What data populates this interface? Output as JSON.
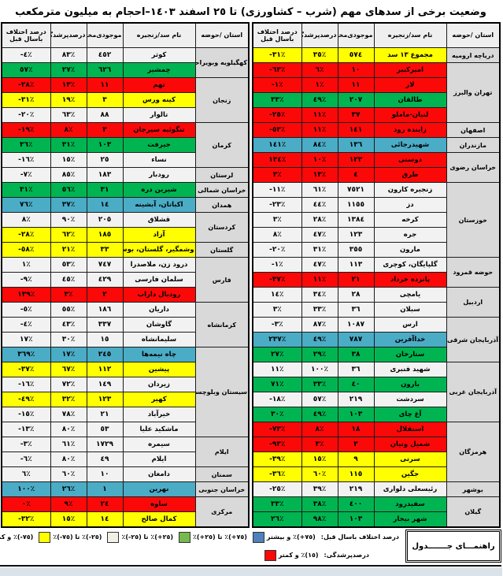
{
  "title": "وضعیت برخی از سدهای مهم (شرب – کشاورزی) تا ٢٥ اسفند ١٤٠٣–احجام به میلیون مترمکعب",
  "columns": [
    "استان /حوضه",
    "نام سد/زنجیره",
    "موجودی‌مخزن",
    "درصدپرشدگی",
    "درصد اختلاف باسال قبل"
  ],
  "right_table": {
    "groups": [
      {
        "province": "دریاچه ارومیه",
        "rows": [
          {
            "name": "مجموع ١٣ سد",
            "volume": "٥٧٤",
            "fill": "٣٥٪",
            "diff": "-٣١٪",
            "color": "yellow"
          }
        ]
      },
      {
        "province": "تهران والبرز",
        "rows": [
          {
            "name": "امیرکبیر",
            "volume": "١٠",
            "fill": "٦٪",
            "diff": "-٦٣٪",
            "color": "red"
          },
          {
            "name": "لار",
            "volume": "١١",
            "fill": "١٪",
            "diff": "-١٪",
            "color": "red"
          },
          {
            "name": "طالقان",
            "volume": "٢٠٧",
            "fill": "٤٩٪",
            "diff": "٣٣٪",
            "color": "green"
          },
          {
            "name": "لتیان-ماملو",
            "volume": "٣٧",
            "fill": "١١٪",
            "diff": "-٢٥٪",
            "color": "red"
          }
        ]
      },
      {
        "province": "اصفهان",
        "rows": [
          {
            "name": "زاینده رود",
            "volume": "١٤١",
            "fill": "١١٪",
            "diff": "-٥٣٪",
            "color": "red"
          }
        ]
      },
      {
        "province": "مازندران",
        "rows": [
          {
            "name": "شهیدرجائی",
            "volume": "١٣٦",
            "fill": "٨٤٪",
            "diff": "١٤١٪",
            "color": "blue"
          }
        ]
      },
      {
        "province": "خراسان رضوی",
        "rows": [
          {
            "name": "دوستی",
            "volume": "١٢٣",
            "fill": "١٠٪",
            "diff": "١٣٤٪",
            "color": "red"
          },
          {
            "name": "طرق",
            "volume": "٤",
            "fill": "١٣٪",
            "diff": "٣٪",
            "color": "red"
          }
        ]
      },
      {
        "province": "خوزستان",
        "rows": [
          {
            "name": "زنجیره کارون",
            "volume": "٧٥٢١",
            "fill": "٦١٪",
            "diff": "-١١٪",
            "color": "white"
          },
          {
            "name": "دز",
            "volume": "١١٥٥",
            "fill": "٤٤٪",
            "diff": "-٢٣٪",
            "color": "white"
          },
          {
            "name": "کرخه",
            "volume": "١٣٨٤",
            "fill": "٢٨٪",
            "diff": "٣٪",
            "color": "white"
          },
          {
            "name": "جره",
            "volume": "١٢٣",
            "fill": "٤٧٪",
            "diff": "٨٪",
            "color": "white"
          },
          {
            "name": "مارون",
            "volume": "٣٥٥",
            "fill": "٣١٪",
            "diff": "-٢٠٪",
            "color": "white"
          }
        ]
      },
      {
        "province": "حوضه قمرود",
        "rows": [
          {
            "name": "گلپایگان، کوچری",
            "volume": "١١٣",
            "fill": "٤٧٪",
            "diff": "-١٪",
            "color": "white"
          },
          {
            "name": "پانزده خرداد",
            "volume": "٢١",
            "fill": "١١٪",
            "diff": "-٣٧٪",
            "color": "red"
          }
        ]
      },
      {
        "province": "اردبیل",
        "rows": [
          {
            "name": "یامچی",
            "volume": "٢٨",
            "fill": "٣٤٪",
            "diff": "١٤٪",
            "color": "white"
          },
          {
            "name": "سبلان",
            "volume": "٣٦",
            "fill": "٣٣٪",
            "diff": "٣٪",
            "color": "white"
          }
        ]
      },
      {
        "province": "آذربایجان شرقی",
        "rows": [
          {
            "name": "ارس",
            "volume": "١٠٨٧",
            "fill": "٨٧٪",
            "diff": "-٣٪",
            "color": "white"
          },
          {
            "name": "خداآفرین",
            "volume": "٧٨٧",
            "fill": "٤٩٪",
            "diff": "٢٣٧٪",
            "color": "blue"
          },
          {
            "name": "ستارخان",
            "volume": "٣٨",
            "fill": "٢٩٪",
            "diff": "٢٧٪",
            "color": "green"
          }
        ]
      },
      {
        "province": "آذربایجان غربی",
        "rows": [
          {
            "name": "شهید قنبری",
            "volume": "٣٦",
            "fill": "١٠٠٪",
            "diff": "١١٪",
            "color": "white"
          },
          {
            "name": "بارون",
            "volume": "٤٠",
            "fill": "٣٣٪",
            "diff": "٧١٪",
            "color": "green"
          },
          {
            "name": "سردشت",
            "volume": "٢١٩",
            "fill": "٥٧٪",
            "diff": "-١٨٪",
            "color": "white"
          },
          {
            "name": "آغ چای",
            "volume": "١٠٣",
            "fill": "٤٩٪",
            "diff": "٣٠٪",
            "color": "green"
          }
        ]
      },
      {
        "province": "هرمزگان",
        "rows": [
          {
            "name": "استقلال",
            "volume": "١٨",
            "fill": "٨٪",
            "diff": "-٧٣٪",
            "color": "red"
          },
          {
            "name": "شمیل وتیان",
            "volume": "٣",
            "fill": "٣٪",
            "diff": "-٩٣٪",
            "color": "red"
          },
          {
            "name": "سرتی",
            "volume": "٩",
            "fill": "١٥٪",
            "diff": "-٣٩٪",
            "color": "yellow"
          },
          {
            "name": "جگین",
            "volume": "١١٥",
            "fill": "٦٠٪",
            "diff": "-٣٦٪",
            "color": "yellow"
          }
        ]
      },
      {
        "province": "بوشهر",
        "rows": [
          {
            "name": "رئیسعلی دلواری",
            "volume": "٢١٩",
            "fill": "٣٩٪",
            "diff": "-٢٥٪",
            "color": "white"
          }
        ]
      },
      {
        "province": "گیلان",
        "rows": [
          {
            "name": "سفیدرود",
            "volume": "٤٠٠",
            "fill": "٣٨٪",
            "diff": "٣٣٪",
            "color": "green"
          },
          {
            "name": "شهر بیجار",
            "volume": "١٠٣",
            "fill": "٩٨٪",
            "diff": "٢٦٪",
            "color": "green"
          }
        ]
      }
    ]
  },
  "left_table": {
    "groups": [
      {
        "province": "کهگیلویه وبویراحمد",
        "rows": [
          {
            "name": "کوثر",
            "volume": "٤٥٢",
            "fill": "٨٣٪",
            "diff": "-٤٪",
            "color": "white"
          },
          {
            "name": "چمشیر",
            "volume": "٦٢٦",
            "fill": "٢٧٪",
            "diff": "٥٧٪",
            "color": "green"
          }
        ]
      },
      {
        "province": "زنجان",
        "rows": [
          {
            "name": "تهم",
            "volume": "١١",
            "fill": "١٣٪",
            "diff": "-٢٨٪",
            "color": "red"
          },
          {
            "name": "کینه ورس",
            "volume": "٣",
            "fill": "١٩٪",
            "diff": "-٣١٪",
            "color": "yellow"
          },
          {
            "name": "تالوار",
            "volume": "٨٨",
            "fill": "٦٣٪",
            "diff": "-٢٠٪",
            "color": "white"
          }
        ]
      },
      {
        "province": "کرمان",
        "rows": [
          {
            "name": "تنگوئیه سیرجان",
            "volume": "٣",
            "fill": "٨٪",
            "diff": "-١٩٪",
            "color": "red"
          },
          {
            "name": "جیرفت",
            "volume": "١٠٣",
            "fill": "٣١٪",
            "diff": "٣٦٪",
            "color": "green"
          },
          {
            "name": "نساء",
            "volume": "٢٥",
            "fill": "١٥٪",
            "diff": "-١٦٪",
            "color": "white"
          }
        ]
      },
      {
        "province": "لرستان",
        "rows": [
          {
            "name": "رودبار",
            "volume": "١٨٣",
            "fill": "٨٥٪",
            "diff": "-٧٪",
            "color": "white"
          }
        ]
      },
      {
        "province": "خراسان شمالی",
        "rows": [
          {
            "name": "شیرین دره",
            "volume": "٣١",
            "fill": "٥٦٪",
            "diff": "٣١٪",
            "color": "green"
          }
        ]
      },
      {
        "province": "همدان",
        "rows": [
          {
            "name": "اکباتان، آبشینه",
            "volume": "١٤",
            "fill": "٣٧٪",
            "diff": "٧٦٪",
            "color": "blue"
          }
        ]
      },
      {
        "province": "کردستان",
        "rows": [
          {
            "name": "قشلاق",
            "volume": "٢٠٥",
            "fill": "٩٠٪",
            "diff": "٨٪",
            "color": "white"
          },
          {
            "name": "آزاد",
            "volume": "١٨٥",
            "fill": "٦٢٪",
            "diff": "-٢٨٪",
            "color": "yellow"
          }
        ]
      },
      {
        "province": "گلستان",
        "rows": [
          {
            "name": "وشمگیر، گلستان، بوستان",
            "volume": "٣٣",
            "fill": "٢١٪",
            "diff": "-٥٨٪",
            "color": "yellow"
          }
        ]
      },
      {
        "province": "فارس",
        "rows": [
          {
            "name": "درود زن، ملاصدرا",
            "volume": "٧٤٧",
            "fill": "٥٣٪",
            "diff": "١٪",
            "color": "white"
          },
          {
            "name": "سلمان فارسی",
            "volume": "٤٢٩",
            "fill": "٤٥٪",
            "diff": "-٩٪",
            "color": "white"
          },
          {
            "name": "رودبال داراب",
            "volume": "٢",
            "fill": "٣٪",
            "diff": "١٣٩٪",
            "color": "red"
          }
        ]
      },
      {
        "province": "کرمانشاه",
        "rows": [
          {
            "name": "داریان",
            "volume": "١٨٦",
            "fill": "٥٥٪",
            "diff": "-٥٪",
            "color": "white"
          },
          {
            "name": "گاوشان",
            "volume": "٣٣٧",
            "fill": "٤٣٪",
            "diff": "-٤٪",
            "color": "white"
          },
          {
            "name": "سلیمانشاه",
            "volume": "١٥",
            "fill": "٣٠٪",
            "diff": "١٧٪",
            "color": "white"
          }
        ]
      },
      {
        "province": "سیستان وبلوچستان",
        "rows": [
          {
            "name": "چاه نیمه‌ها",
            "volume": "٢٤٥",
            "fill": "١٧٪",
            "diff": "٣٦٩٪",
            "color": "blue"
          },
          {
            "name": "پیشین",
            "volume": "١١٢",
            "fill": "٦٧٪",
            "diff": "-٣٧٪",
            "color": "yellow"
          },
          {
            "name": "زیردان",
            "volume": "١٤٩",
            "fill": "٧٢٪",
            "diff": "-١٦٪",
            "color": "white"
          },
          {
            "name": "کهیر",
            "volume": "١٢٣",
            "fill": "٣٢٪",
            "diff": "-٤٩٪",
            "color": "yellow"
          },
          {
            "name": "خیرآباد",
            "volume": "٢١",
            "fill": "٧٨٪",
            "diff": "-١٥٪",
            "color": "white"
          },
          {
            "name": "ماشکید علیا",
            "volume": "٥٣",
            "fill": "٨٠٪",
            "diff": "-١٣٪",
            "color": "white"
          }
        ]
      },
      {
        "province": "ایلام",
        "rows": [
          {
            "name": "سیمره",
            "volume": "١٧٢٩",
            "fill": "٦١٪",
            "diff": "-٣٪",
            "color": "white"
          },
          {
            "name": "ایلام",
            "volume": "٤٩",
            "fill": "٨٠٪",
            "diff": "-٦٪",
            "color": "white"
          }
        ]
      },
      {
        "province": "سمنان",
        "rows": [
          {
            "name": "دامغان",
            "volume": "١٠",
            "fill": "٦٠٪",
            "diff": "٦٪",
            "color": "white"
          }
        ]
      },
      {
        "province": "خراسان جنوبی",
        "rows": [
          {
            "name": "نهرین",
            "volume": "١",
            "fill": "٢٦٪",
            "diff": "١٠٠٪",
            "color": "blue"
          }
        ]
      },
      {
        "province": "مرکزی",
        "rows": [
          {
            "name": "ساوه",
            "volume": "٢٤",
            "fill": "٩٪",
            "diff": "٠٪",
            "color": "red"
          },
          {
            "name": "کمال صالح",
            "volume": "١٤",
            "fill": "١٥٪",
            "diff": "-٣٢٪",
            "color": "yellow"
          }
        ]
      }
    ]
  },
  "legend": {
    "title": "راهنمـــای جـــــــدول",
    "diff_label": "درصد اختلاف باسال قبل:",
    "fill_label": "درصدپرشدگی:",
    "diff_items": [
      {
        "color": "#4f81bd",
        "label": "(٧٥+)٪ و بیشتر"
      },
      {
        "color": "#77b94c",
        "label": "(٧٥+)٪ تا (٢٥+)٪"
      },
      {
        "color": "#f2efe6",
        "label": "(٢٥+)٪ تا (٢٥-)٪"
      },
      {
        "color": "#ffff00",
        "label": "(٢٥-)٪ تا (٧٥-)٪"
      },
      {
        "color": "#e36c09",
        "label": "(٧٥-)٪ و کمتر"
      }
    ],
    "fill_items": [
      {
        "color": "#fb0909",
        "label": "(١٥)٪ و کمتر"
      }
    ],
    "row_colors": {
      "red": "#fb0909",
      "green": "#00b551",
      "blue": "#4bacc6",
      "yellow": "#ffff00",
      "white": "#f2f2f2"
    }
  }
}
